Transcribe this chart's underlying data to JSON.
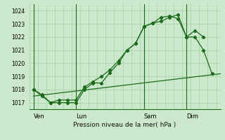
{
  "background_color": "#cce8cc",
  "grid_color": "#99cc99",
  "line_color": "#1a6b1a",
  "plot_bg": "#cce8cc",
  "xlabel_text": "Pression niveau de la mer( hPa )",
  "xtick_labels": [
    "Ven",
    "Lun",
    "Sam",
    "Dim"
  ],
  "xtick_positions": [
    0,
    5,
    13,
    18
  ],
  "ylim": [
    1016.5,
    1024.5
  ],
  "yticks": [
    1017,
    1018,
    1019,
    1020,
    1021,
    1022,
    1023,
    1024
  ],
  "xlim": [
    -0.5,
    22
  ],
  "series1_x": [
    0,
    1,
    2,
    3,
    4,
    5,
    6,
    7,
    8,
    9,
    10,
    11,
    12,
    13,
    14,
    15,
    16,
    17,
    18,
    19,
    20
  ],
  "series1_y": [
    1018.0,
    1017.6,
    1017.0,
    1017.0,
    1017.0,
    1017.0,
    1018.0,
    1018.5,
    1018.5,
    1019.3,
    1020.0,
    1021.0,
    1021.5,
    1022.8,
    1023.05,
    1023.2,
    1023.5,
    1023.7,
    1022.0,
    1022.5,
    1022.0
  ],
  "series2_x": [
    0,
    1,
    2,
    3,
    4,
    5,
    6,
    7,
    8,
    9,
    10,
    11,
    12,
    13,
    14,
    15,
    16,
    17,
    18,
    19,
    20,
    21
  ],
  "series2_y": [
    1018.0,
    1017.5,
    1017.0,
    1017.2,
    1017.2,
    1017.2,
    1018.2,
    1018.6,
    1019.0,
    1019.5,
    1020.2,
    1021.0,
    1021.5,
    1022.8,
    1023.05,
    1023.5,
    1023.6,
    1023.4,
    1022.0,
    1022.0,
    1021.0,
    1019.2
  ],
  "series3_x": [
    0,
    22
  ],
  "series3_y": [
    1017.5,
    1019.2
  ],
  "vlines": [
    0,
    5,
    13,
    18
  ]
}
